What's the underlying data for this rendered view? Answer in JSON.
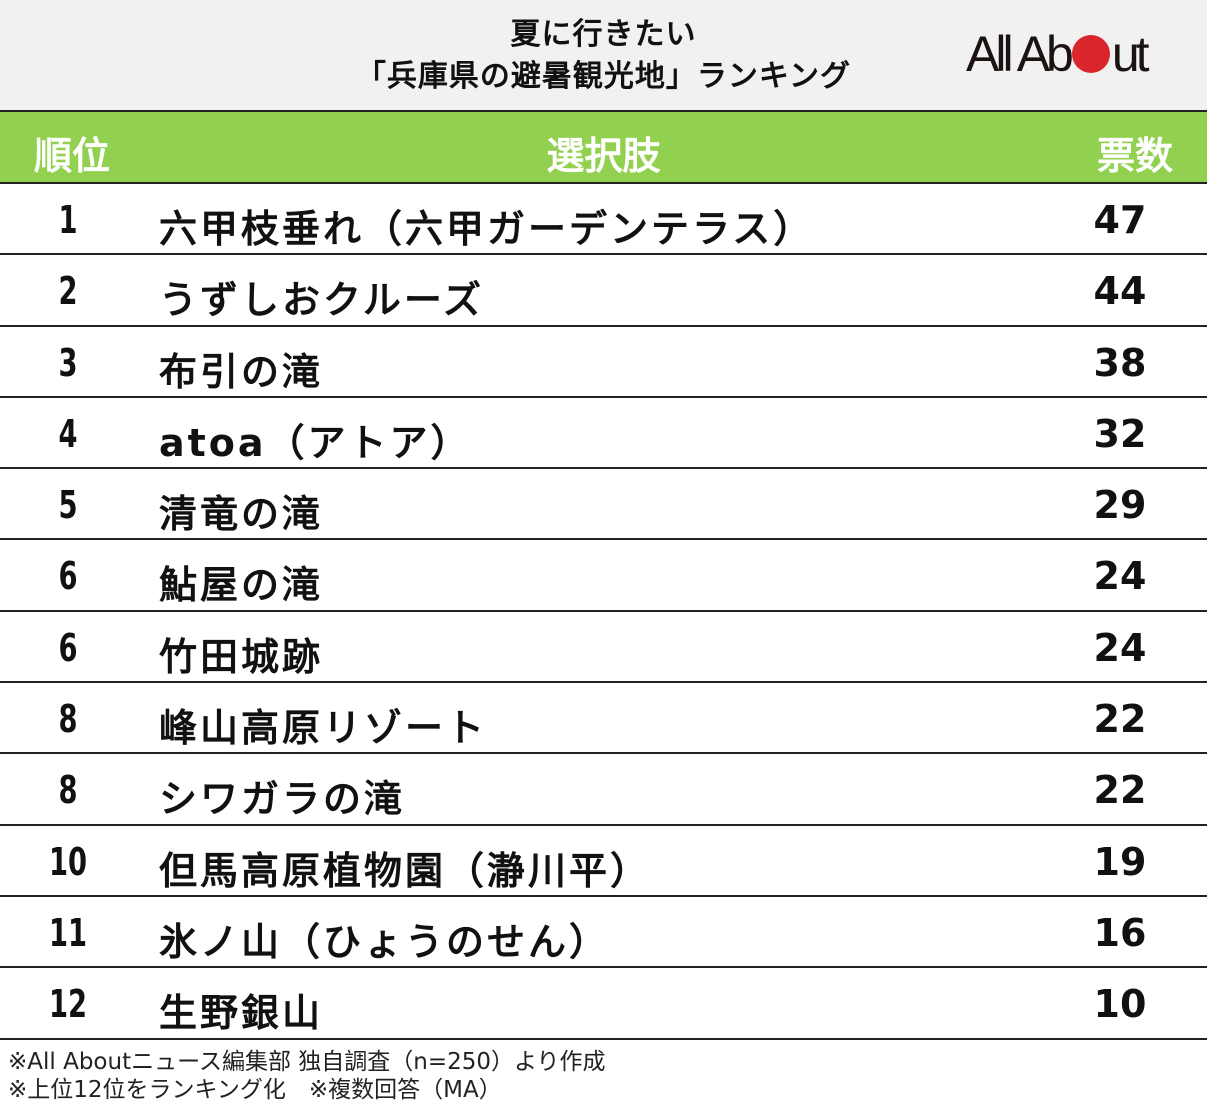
{
  "title": {
    "line1": "夏に行きたい",
    "line2": "「兵庫県の避暑観光地」ランキング"
  },
  "logo": {
    "text_before": "All Ab",
    "text_after": "ut",
    "dot_color": "#d9262c"
  },
  "colors": {
    "header_bg": "#92d050",
    "title_bg": "#f1f1f1",
    "border": "#222222"
  },
  "table": {
    "headers": {
      "rank": "順位",
      "choice": "選択肢",
      "votes": "票数"
    },
    "rows": [
      {
        "rank": "1",
        "choice": "六甲枝垂れ（六甲ガーデンテラス）",
        "votes": "47"
      },
      {
        "rank": "2",
        "choice": "うずしおクルーズ",
        "votes": "44"
      },
      {
        "rank": "3",
        "choice": "布引の滝",
        "votes": "38"
      },
      {
        "rank": "4",
        "choice": "atoa（アトア）",
        "votes": "32"
      },
      {
        "rank": "5",
        "choice": "清竜の滝",
        "votes": "29"
      },
      {
        "rank": "6",
        "choice": "鮎屋の滝",
        "votes": "24"
      },
      {
        "rank": "6",
        "choice": "竹田城跡",
        "votes": "24"
      },
      {
        "rank": "8",
        "choice": "峰山高原リゾート",
        "votes": "22"
      },
      {
        "rank": "8",
        "choice": "シワガラの滝",
        "votes": "22"
      },
      {
        "rank": "10",
        "choice": "但馬高原植物園（瀞川平）",
        "votes": "19"
      },
      {
        "rank": "11",
        "choice": "氷ノ山（ひょうのせん）",
        "votes": "16"
      },
      {
        "rank": "12",
        "choice": "生野銀山",
        "votes": "10"
      }
    ]
  },
  "footer": {
    "line1": "※All Aboutニュース編集部 独自調査（n=250）より作成",
    "line2": "※上位12位をランキング化　※複数回答（MA）"
  },
  "chart_data": {
    "type": "table",
    "title": "夏に行きたい「兵庫県の避暑観光地」ランキング",
    "columns": [
      "順位",
      "選択肢",
      "票数"
    ],
    "categories": [
      "六甲枝垂れ（六甲ガーデンテラス）",
      "うずしおクルーズ",
      "布引の滝",
      "atoa（アトア）",
      "清竜の滝",
      "鮎屋の滝",
      "竹田城跡",
      "峰山高原リゾート",
      "シワガラの滝",
      "但馬高原植物園（瀞川平）",
      "氷ノ山（ひょうのせん）",
      "生野銀山"
    ],
    "ranks": [
      1,
      2,
      3,
      4,
      5,
      6,
      6,
      8,
      8,
      10,
      11,
      12
    ],
    "values": [
      47,
      44,
      38,
      32,
      29,
      24,
      24,
      22,
      22,
      19,
      16,
      10
    ],
    "notes": [
      "※All Aboutニュース編集部 独自調査（n=250）より作成",
      "※上位12位をランキング化　※複数回答（MA）"
    ]
  }
}
